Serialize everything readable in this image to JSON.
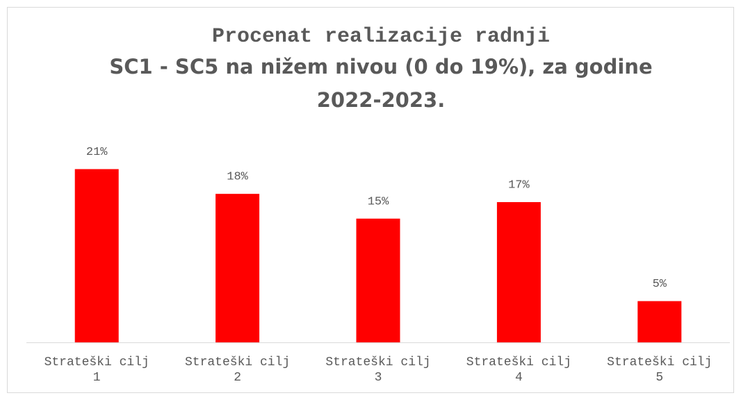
{
  "chart_data": {
    "type": "bar",
    "title": [
      "Procenat realizacije radnji",
      "SC1 - SC5 na nižem nivou (0 do 19%), za godine",
      "2022-2023."
    ],
    "categories": [
      "Strateški cilj 1",
      "Strateški cilj 2",
      "Strateški cilj 3",
      "Strateški cilj 4",
      "Strateški cilj 5"
    ],
    "values": [
      21,
      18,
      15,
      17,
      5
    ],
    "value_labels": [
      "21%",
      "18%",
      "15%",
      "17%",
      "5%"
    ],
    "color": "#ff0000",
    "ylim": [
      0,
      25
    ]
  }
}
